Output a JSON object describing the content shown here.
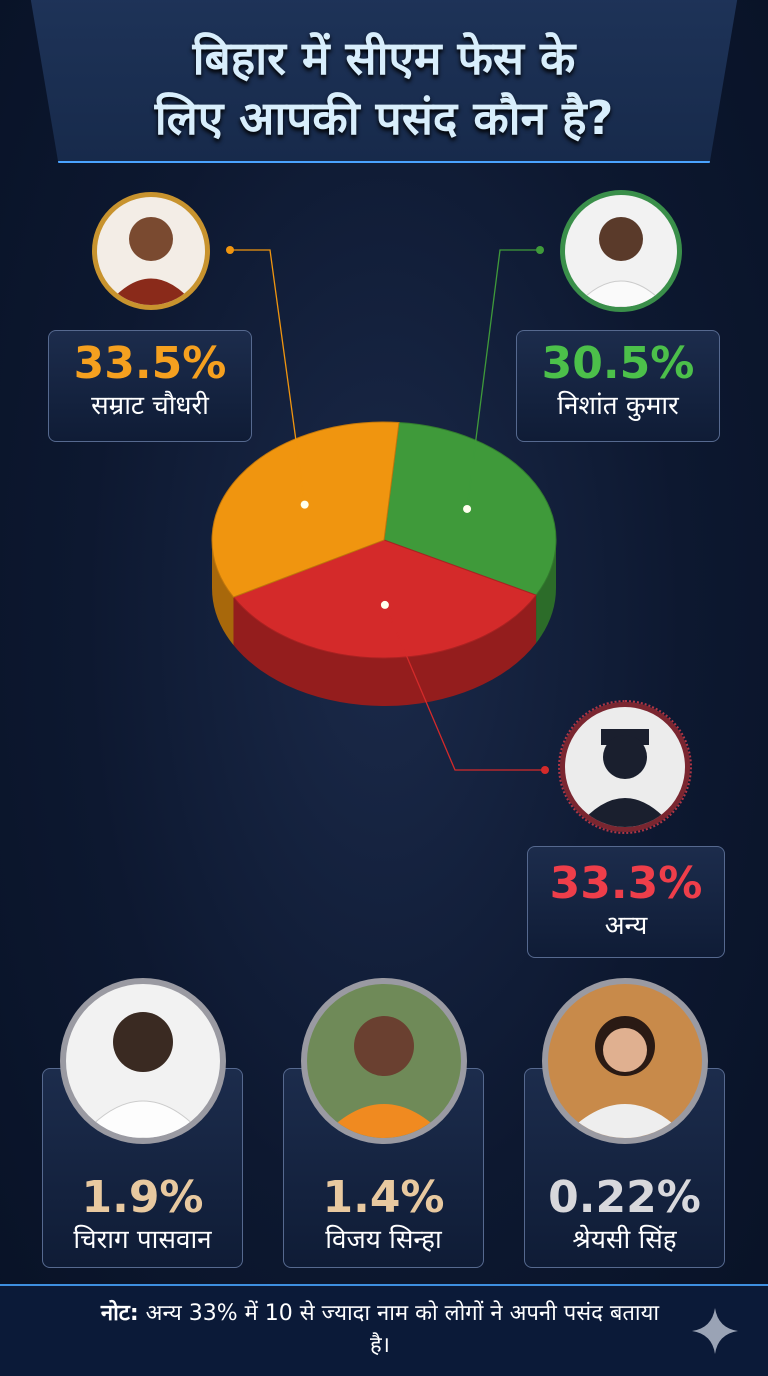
{
  "title": {
    "line1": "बिहार में सीएम फेस के",
    "line2": "लिए आपकी पसंद कौन है?"
  },
  "chart_data": {
    "type": "pie",
    "title": "बिहार में सीएम फेस के लिए आपकी पसंद कौन है?",
    "slices": [
      {
        "label": "सम्राट चौधरी",
        "value": 33.5,
        "display": "33.5%",
        "color": "#f0950f"
      },
      {
        "label": "निशांत कुमार",
        "value": 30.5,
        "display": "30.5%",
        "color": "#3f9a3a"
      },
      {
        "label": "अन्य",
        "value": 33.3,
        "display": "33.3%",
        "color": "#d42a2a"
      }
    ],
    "others": [
      {
        "label": "चिराग पासवान",
        "value": 1.9,
        "display": "1.9%"
      },
      {
        "label": "विजय सिन्हा",
        "value": 1.4,
        "display": "1.4%"
      },
      {
        "label": "श्रेयसी सिंह",
        "value": 0.22,
        "display": "0.22%"
      }
    ]
  },
  "pct_colors": {
    "samrat": "#f5a01f",
    "nishant": "#4cc04a",
    "anya": "#ee3e4a",
    "others": "#e8c9a0"
  },
  "footer": {
    "note_bold": "नोट:",
    "note_text": " अन्य 33% में 10 से ज्यादा नाम को लोगों ने अपनी पसंद बताया है।",
    "sparkle_icon": "sparkle-icon"
  }
}
